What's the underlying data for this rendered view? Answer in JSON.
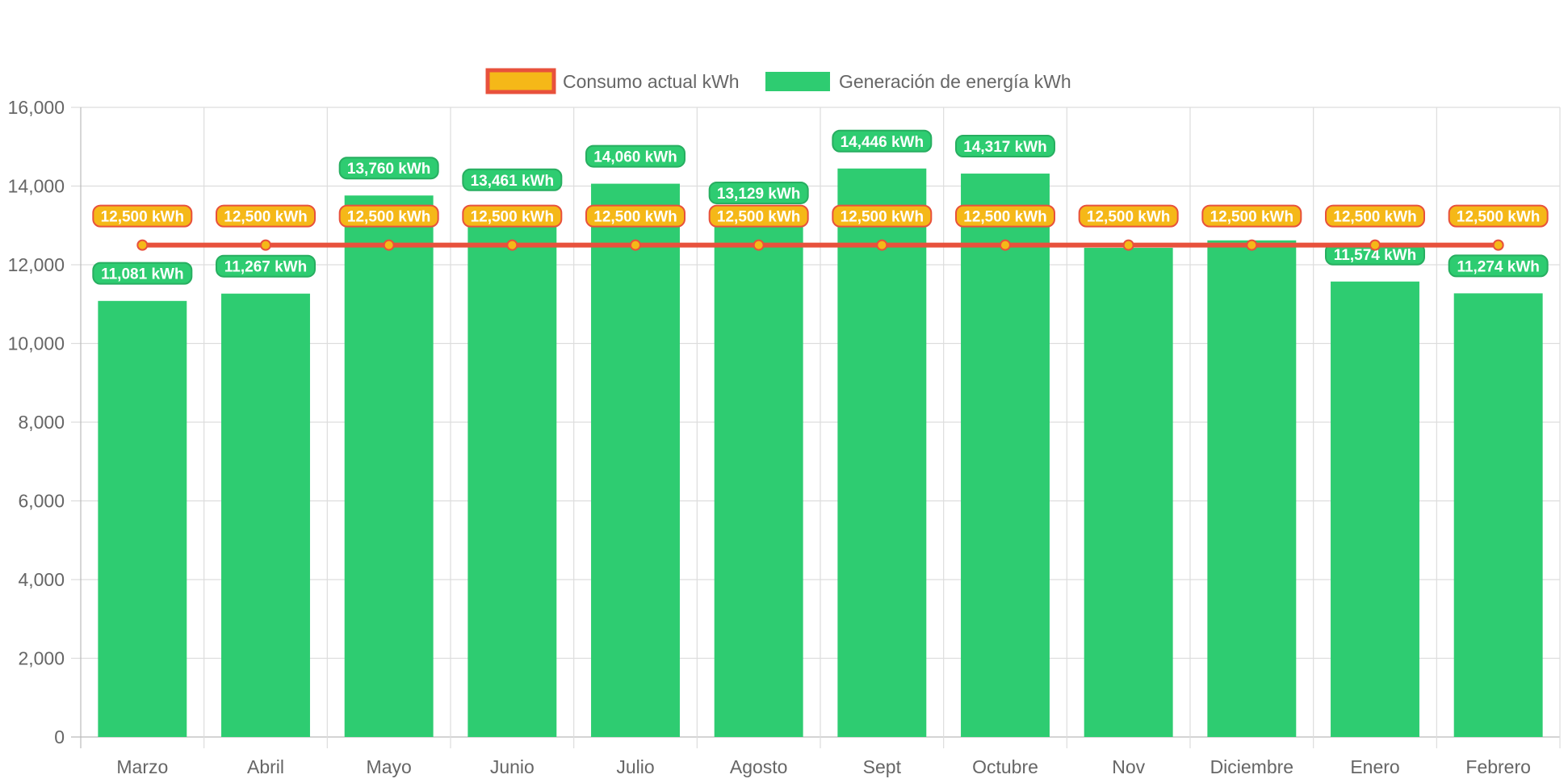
{
  "chart_data": {
    "type": "bar",
    "categories": [
      "Marzo",
      "Abril",
      "Mayo",
      "Junio",
      "Julio",
      "Agosto",
      "Sept",
      "Octubre",
      "Nov",
      "Diciembre",
      "Enero",
      "Febrero"
    ],
    "ylim": [
      0,
      16000
    ],
    "yticks": [
      0,
      2000,
      4000,
      6000,
      8000,
      10000,
      12000,
      14000,
      16000
    ],
    "ytick_labels": [
      "0",
      "2,000",
      "4,000",
      "6,000",
      "8,000",
      "10,000",
      "12,000",
      "14,000",
      "16,000"
    ],
    "grid": true,
    "legend_position": "top",
    "series": [
      {
        "name": "Consumo actual kWh",
        "kind": "line",
        "values": [
          12500,
          12500,
          12500,
          12500,
          12500,
          12500,
          12500,
          12500,
          12500,
          12500,
          12500,
          12500
        ],
        "labels": [
          "12,500 kWh",
          "12,500 kWh",
          "12,500 kWh",
          "12,500 kWh",
          "12,500 kWh",
          "12,500 kWh",
          "12,500 kWh",
          "12,500 kWh",
          "12,500 kWh",
          "12,500 kWh",
          "12,500 kWh",
          "12,500 kWh"
        ],
        "line_color": "#e8513c",
        "fill_color": "#f5b818"
      },
      {
        "name": "Generación de energía kWh",
        "kind": "bar",
        "values": [
          11081,
          11267,
          13760,
          13461,
          14060,
          13129,
          14446,
          14317,
          12430,
          12620,
          11574,
          11274
        ],
        "labels": [
          "11,081 kWh",
          "11,267 kWh",
          "13,760 kWh",
          "13,461 kWh",
          "14,060 kWh",
          "13,129 kWh",
          "14,446 kWh",
          "14,317 kWh",
          "",
          "",
          "11,574 kWh",
          "11,274 kWh"
        ],
        "fill_color": "#2ecc71",
        "border_color": "#27ae60"
      }
    ]
  }
}
